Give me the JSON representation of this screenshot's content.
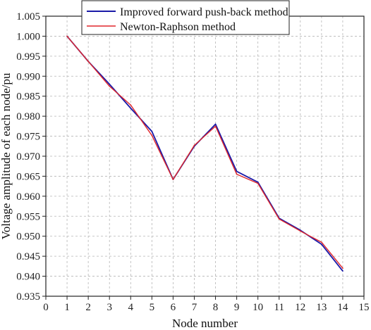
{
  "chart_data": {
    "type": "line",
    "xlabel": "Node number",
    "ylabel": "Voltage amplitude of each node/pu",
    "xlim": [
      0,
      15
    ],
    "ylim": [
      0.935,
      1.005
    ],
    "x_ticks": [
      "0",
      "1",
      "2",
      "3",
      "4",
      "5",
      "6",
      "7",
      "8",
      "9",
      "10",
      "11",
      "12",
      "13",
      "14",
      "15"
    ],
    "y_ticks": [
      "0.935",
      "0.940",
      "0.945",
      "0.950",
      "0.955",
      "0.960",
      "0.965",
      "0.970",
      "0.975",
      "0.980",
      "0.985",
      "0.990",
      "0.995",
      "1.000",
      "1.005"
    ],
    "grid": true,
    "legend_position": "top",
    "x": [
      1,
      2,
      3,
      4,
      5,
      6,
      7,
      8,
      9,
      10,
      11,
      12,
      13,
      14
    ],
    "series": [
      {
        "name": "Improved forward push-back method",
        "color": "#1a1aa8",
        "values": [
          1.0,
          0.9937,
          0.988,
          0.982,
          0.9762,
          0.9642,
          0.9725,
          0.978,
          0.9662,
          0.9635,
          0.9545,
          0.9515,
          0.948,
          0.9413
        ]
      },
      {
        "name": "Newton-Raphson method",
        "color": "#e0262b",
        "values": [
          1.0,
          0.9937,
          0.9875,
          0.9828,
          0.9752,
          0.9642,
          0.9727,
          0.9775,
          0.9655,
          0.9632,
          0.9543,
          0.9513,
          0.9485,
          0.942
        ]
      }
    ]
  }
}
